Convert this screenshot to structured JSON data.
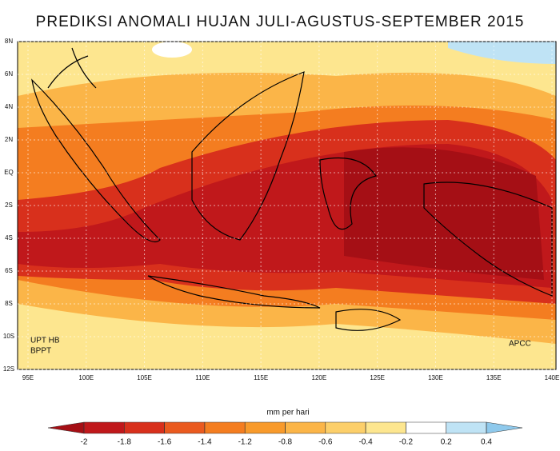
{
  "title": "PREDIKSI ANOMALI HUJAN JULI-AGUSTUS-SEPTEMBER 2015",
  "map": {
    "xlim": [
      95,
      140
    ],
    "ylim": [
      -12,
      8
    ],
    "xticks": [
      {
        "value": 95,
        "label": "95E"
      },
      {
        "value": 100,
        "label": "100E"
      },
      {
        "value": 105,
        "label": "105E"
      },
      {
        "value": 110,
        "label": "110E"
      },
      {
        "value": 115,
        "label": "115E"
      },
      {
        "value": 120,
        "label": "120E"
      },
      {
        "value": 125,
        "label": "125E"
      },
      {
        "value": 130,
        "label": "130E"
      },
      {
        "value": 135,
        "label": "135E"
      },
      {
        "value": 140,
        "label": "140E"
      }
    ],
    "yticks": [
      {
        "value": 8,
        "label": "8N"
      },
      {
        "value": 6,
        "label": "6N"
      },
      {
        "value": 4,
        "label": "4N"
      },
      {
        "value": 2,
        "label": "2N"
      },
      {
        "value": 0,
        "label": "EQ"
      },
      {
        "value": -2,
        "label": "2S"
      },
      {
        "value": -4,
        "label": "4S"
      },
      {
        "value": -6,
        "label": "6S"
      },
      {
        "value": -8,
        "label": "8S"
      },
      {
        "value": -10,
        "label": "10S"
      },
      {
        "value": -12,
        "label": "12S"
      }
    ],
    "annotations": [
      "UPT HB",
      "BPPT",
      "APCC"
    ]
  },
  "colorbar": {
    "label": "mm  per hari",
    "ticks": [
      -2,
      -1.8,
      -1.6,
      -1.4,
      -1.2,
      -0.8,
      -0.6,
      -0.4,
      -0.2,
      0.2,
      0.4
    ],
    "colors": [
      "#a50f15",
      "#c0181b",
      "#d8301c",
      "#ea5a1f",
      "#f47d20",
      "#f89a2b",
      "#fbb548",
      "#fccf6a",
      "#fde68f",
      "#ffffff",
      "#bfe3f5",
      "#8ec9ec"
    ]
  }
}
